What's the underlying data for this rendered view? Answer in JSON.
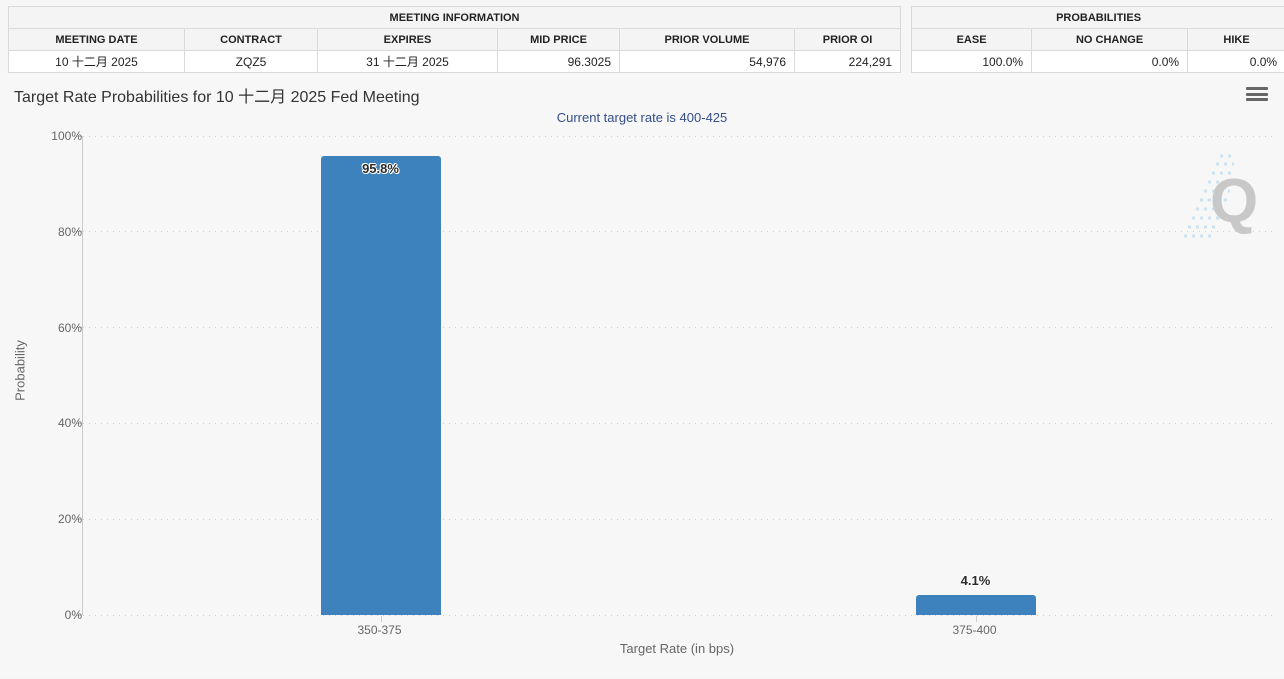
{
  "meeting_info_table": {
    "title": "MEETING INFORMATION",
    "columns": [
      {
        "label": "MEETING DATE",
        "value": "10 十二月 2025"
      },
      {
        "label": "CONTRACT",
        "value": "ZQZ5"
      },
      {
        "label": "EXPIRES",
        "value": "31 十二月 2025"
      },
      {
        "label": "MID PRICE",
        "value": "96.3025"
      },
      {
        "label": "PRIOR VOLUME",
        "value": "54,976"
      },
      {
        "label": "PRIOR OI",
        "value": "224,291"
      }
    ]
  },
  "probabilities_table": {
    "title": "PROBABILITIES",
    "columns": [
      {
        "label": "EASE",
        "value": "100.0%"
      },
      {
        "label": "NO CHANGE",
        "value": "0.0%"
      },
      {
        "label": "HIKE",
        "value": "0.0%"
      }
    ]
  },
  "chart_data": {
    "type": "bar",
    "title": "Target Rate Probabilities for 10 十二月 2025 Fed Meeting",
    "subtitle": "Current target rate is 400-425",
    "xlabel": "Target Rate (in bps)",
    "ylabel": "Probability",
    "categories": [
      "350-375",
      "375-400"
    ],
    "values": [
      95.8,
      4.1
    ],
    "value_labels": [
      "95.8%",
      "4.1%"
    ],
    "ylim": [
      0,
      100
    ],
    "yticks": [
      0,
      20,
      40,
      60,
      80,
      100
    ],
    "ytick_labels": [
      "0%",
      "20%",
      "40%",
      "60%",
      "80%",
      "100%"
    ],
    "grid": "horizontal-dotted",
    "legend": "none",
    "bar_color": "#3d82bd",
    "watermark_letter": "Q"
  }
}
